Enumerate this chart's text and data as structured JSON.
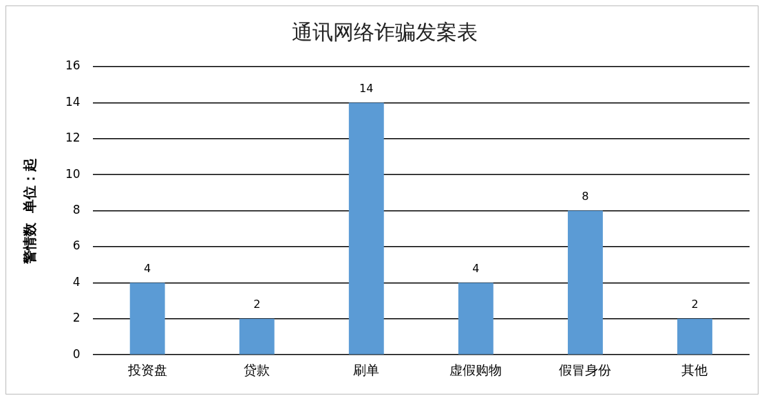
{
  "chart_data": {
    "type": "bar",
    "title": "通讯网络诈骗发案表",
    "ylabel": "警情数  单位：起",
    "categories": [
      "投资盘",
      "贷款",
      "刷单",
      "虚假购物",
      "假冒身份",
      "其他"
    ],
    "values": [
      4,
      2,
      14,
      4,
      8,
      2
    ],
    "color": "#5b9bd5",
    "ylim": [
      0,
      16
    ],
    "yticks": [
      0,
      2,
      4,
      6,
      8,
      10,
      12,
      14,
      16
    ],
    "grid": "y",
    "data_labels": true,
    "legend": false
  }
}
